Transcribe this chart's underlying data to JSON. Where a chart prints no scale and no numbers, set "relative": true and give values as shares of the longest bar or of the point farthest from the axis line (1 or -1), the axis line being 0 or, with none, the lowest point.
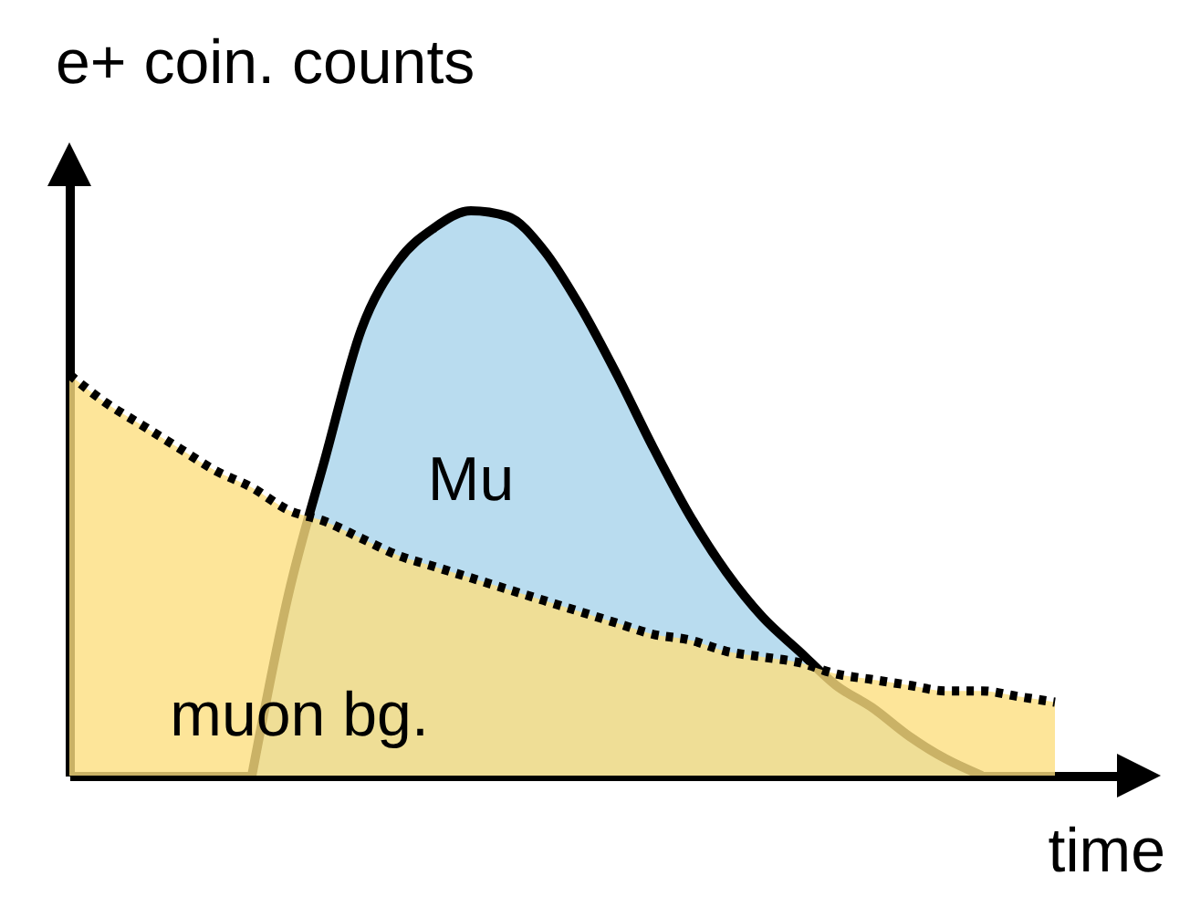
{
  "chart_data": {
    "type": "area",
    "relative": true,
    "xlabel": "time",
    "ylabel": "e+ coin. counts",
    "tick_labels": false,
    "categories": [
      null,
      null,
      null,
      null,
      null,
      null,
      null,
      null,
      null,
      null,
      null,
      null,
      null,
      null,
      null,
      null,
      null,
      null,
      null,
      null,
      null,
      null,
      null,
      null,
      null,
      null,
      null,
      null
    ],
    "series": [
      {
        "name": "Mu",
        "color": "#b9dcef",
        "line_style": "solid",
        "values": [
          null,
          null,
          null,
          null,
          null,
          0,
          0.32,
          0.56,
          0.79,
          0.91,
          0.97,
          1,
          0.99,
          0.93,
          0.83,
          0.71,
          0.58,
          0.46,
          0.36,
          0.28,
          0.22,
          0.16,
          0.12,
          0.07,
          0.03,
          0,
          null,
          null
        ]
      },
      {
        "name": "muon bg.",
        "color": "#fddf7f",
        "line_style": "dotted",
        "values": [
          0.71,
          0.66,
          0.62,
          0.58,
          0.54,
          0.51,
          0.47,
          0.45,
          0.42,
          0.39,
          0.37,
          0.35,
          0.33,
          0.31,
          0.29,
          0.27,
          0.25,
          0.24,
          0.22,
          0.21,
          0.2,
          0.18,
          0.17,
          0.16,
          0.15,
          0.15,
          0.14,
          0.13
        ]
      }
    ]
  }
}
